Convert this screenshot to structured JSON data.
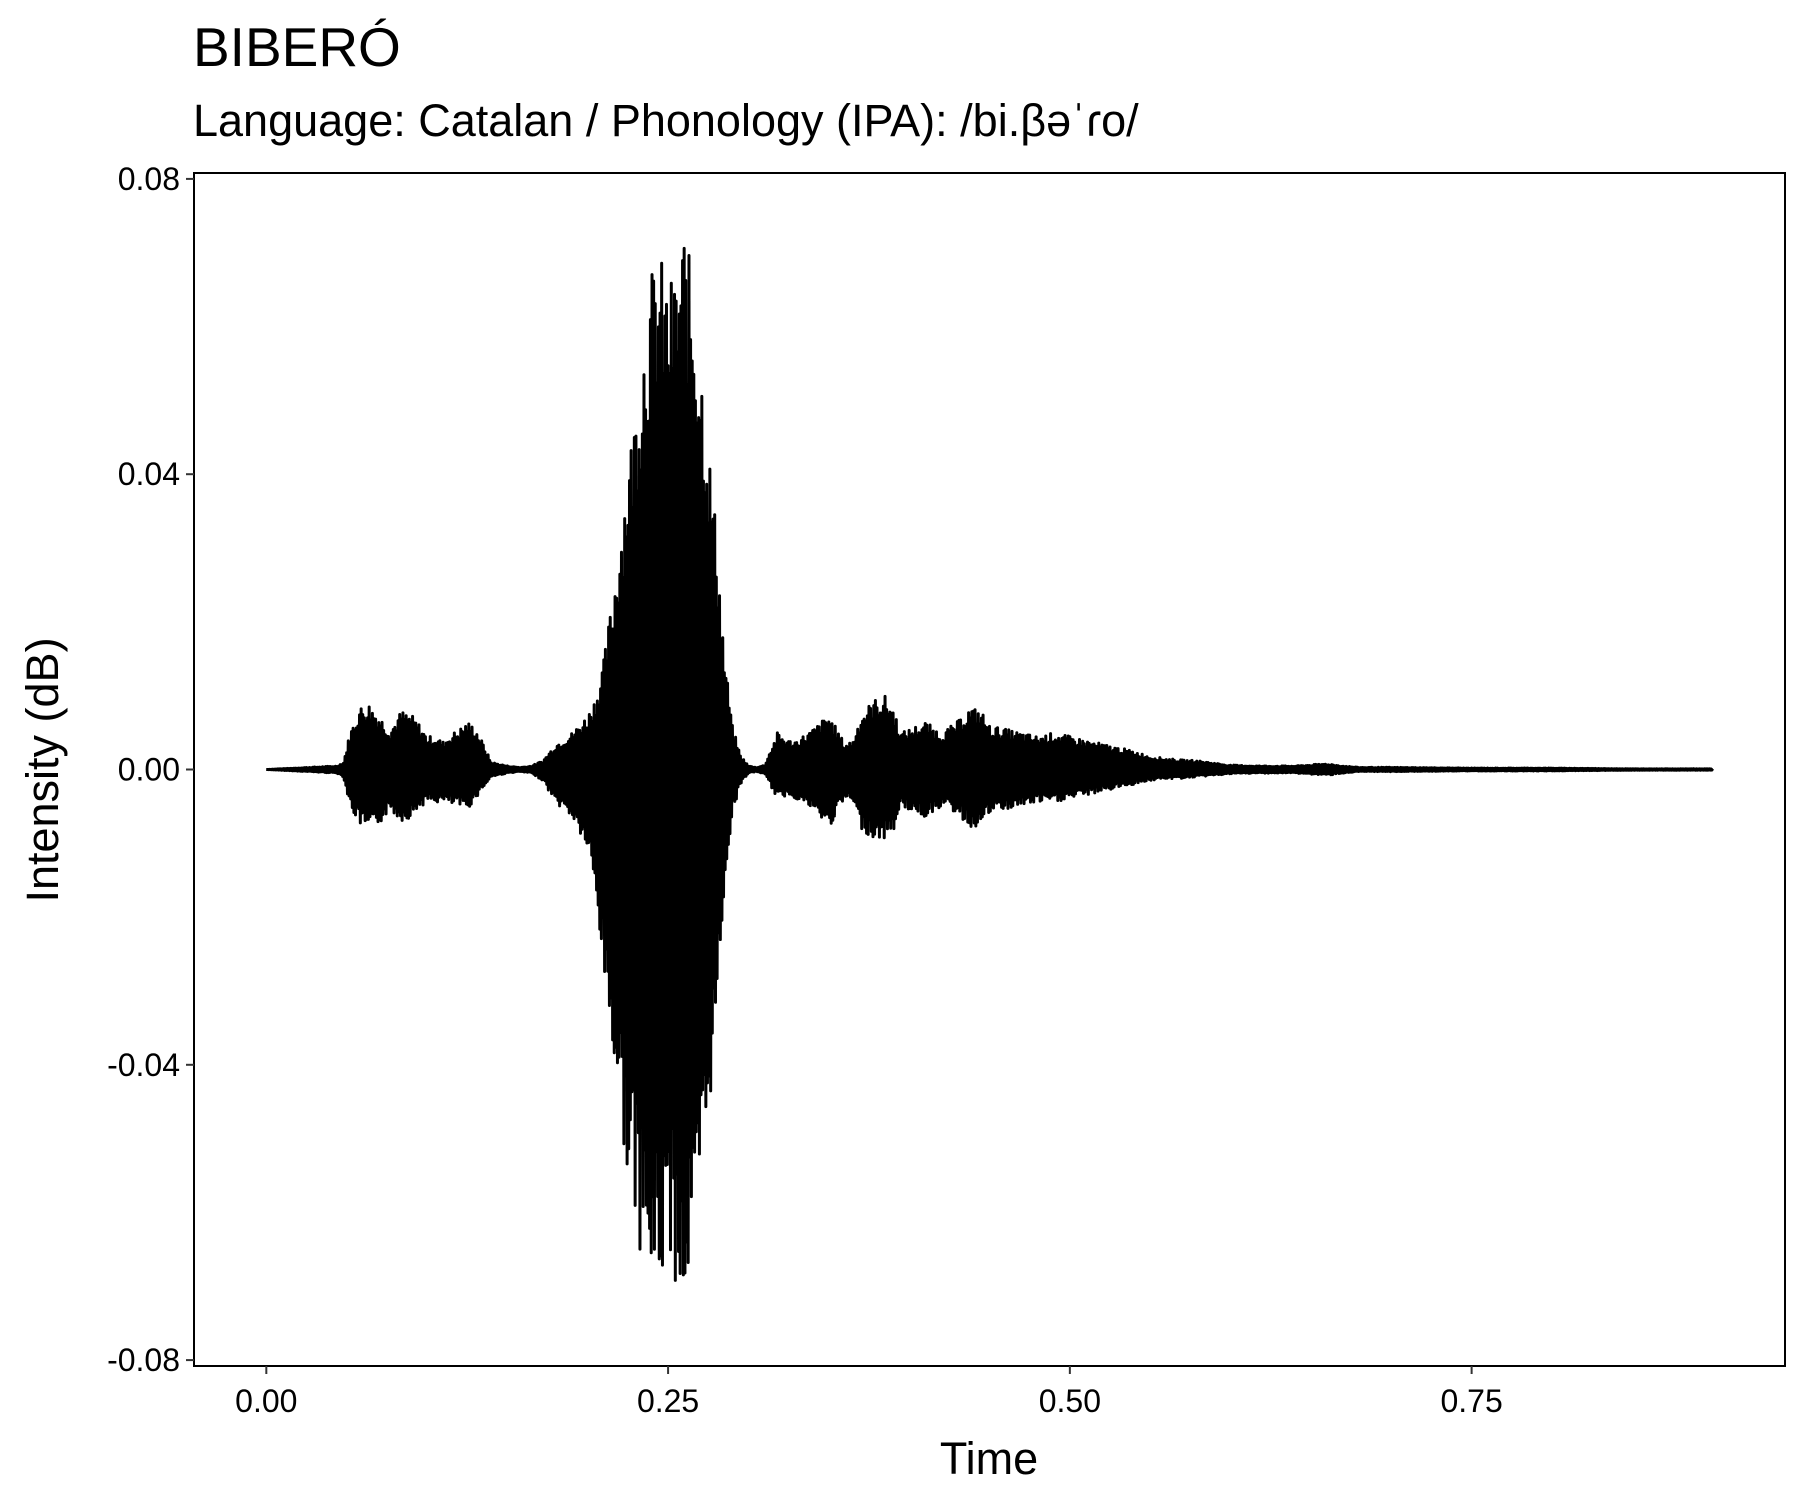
{
  "chart_data": {
    "type": "line",
    "title": "BIBERÓ",
    "subtitle": "Language: Catalan / Phonology (IPA): /bi.βəˈɾo/",
    "xlabel": "Time",
    "ylabel": "Intensity (dB)",
    "xlim": [
      -0.045,
      0.945
    ],
    "ylim": [
      -0.0808,
      0.0808
    ],
    "xticks": [
      0.0,
      0.25,
      0.5,
      0.75
    ],
    "xtick_labels": [
      "0.00",
      "0.25",
      "0.50",
      "0.75"
    ],
    "yticks": [
      -0.08,
      -0.04,
      0.0,
      0.04,
      0.08
    ],
    "ytick_labels": [
      "-0.08",
      "-0.04",
      "0.00",
      "0.04",
      "0.08"
    ],
    "grid": false,
    "line_color": "#000000",
    "envelope": {
      "t": [
        0.0,
        0.044,
        0.048,
        0.052,
        0.058,
        0.064,
        0.07,
        0.077,
        0.084,
        0.09,
        0.096,
        0.1,
        0.105,
        0.11,
        0.115,
        0.12,
        0.125,
        0.13,
        0.135,
        0.14,
        0.15,
        0.158,
        0.165,
        0.172,
        0.18,
        0.19,
        0.2,
        0.205,
        0.21,
        0.215,
        0.22,
        0.225,
        0.23,
        0.235,
        0.24,
        0.245,
        0.25,
        0.255,
        0.26,
        0.265,
        0.27,
        0.275,
        0.28,
        0.285,
        0.29,
        0.295,
        0.3,
        0.305,
        0.31,
        0.318,
        0.325,
        0.33,
        0.34,
        0.35,
        0.36,
        0.365,
        0.37,
        0.378,
        0.385,
        0.39,
        0.395,
        0.4,
        0.41,
        0.42,
        0.43,
        0.438,
        0.445,
        0.45,
        0.46,
        0.47,
        0.48,
        0.49,
        0.5,
        0.51,
        0.52,
        0.53,
        0.54,
        0.55,
        0.56,
        0.57,
        0.58,
        0.59,
        0.6,
        0.62,
        0.64,
        0.66,
        0.67,
        0.68,
        0.7,
        0.75,
        0.8,
        0.85,
        0.9
      ],
      "upper": [
        0.0,
        0.0005,
        0.001,
        0.005,
        0.0085,
        0.009,
        0.0075,
        0.0055,
        0.008,
        0.0075,
        0.006,
        0.0045,
        0.0045,
        0.0038,
        0.0048,
        0.0055,
        0.0065,
        0.0058,
        0.0035,
        0.001,
        0.0005,
        0.0003,
        0.0005,
        0.0012,
        0.0035,
        0.005,
        0.0075,
        0.01,
        0.015,
        0.023,
        0.032,
        0.042,
        0.05,
        0.06,
        0.068,
        0.07,
        0.066,
        0.068,
        0.074,
        0.067,
        0.058,
        0.045,
        0.033,
        0.016,
        0.006,
        0.002,
        0.0005,
        0.0003,
        0.0006,
        0.005,
        0.004,
        0.004,
        0.0055,
        0.0075,
        0.0035,
        0.004,
        0.0075,
        0.0095,
        0.01,
        0.0085,
        0.005,
        0.0055,
        0.0065,
        0.005,
        0.0065,
        0.0085,
        0.008,
        0.006,
        0.0055,
        0.005,
        0.0045,
        0.005,
        0.0045,
        0.004,
        0.0035,
        0.003,
        0.0025,
        0.0018,
        0.0015,
        0.0013,
        0.0012,
        0.0009,
        0.0006,
        0.0005,
        0.0005,
        0.0008,
        0.0005,
        0.0003,
        0.0003,
        0.0002,
        0.0002,
        0.0001,
        0.0001
      ],
      "lower": [
        0.0,
        -0.0005,
        -0.001,
        -0.005,
        -0.0075,
        -0.0085,
        -0.0075,
        -0.0055,
        -0.007,
        -0.0065,
        -0.005,
        -0.0045,
        -0.0045,
        -0.0045,
        -0.0048,
        -0.005,
        -0.0055,
        -0.004,
        -0.0025,
        -0.001,
        -0.0005,
        -0.0003,
        -0.0005,
        -0.0015,
        -0.0045,
        -0.0065,
        -0.011,
        -0.018,
        -0.028,
        -0.038,
        -0.047,
        -0.055,
        -0.062,
        -0.068,
        -0.072,
        -0.071,
        -0.065,
        -0.07,
        -0.074,
        -0.068,
        -0.06,
        -0.048,
        -0.035,
        -0.016,
        -0.006,
        -0.002,
        -0.0005,
        -0.0003,
        -0.0006,
        -0.004,
        -0.0035,
        -0.004,
        -0.0055,
        -0.008,
        -0.004,
        -0.0045,
        -0.008,
        -0.0095,
        -0.0095,
        -0.0085,
        -0.005,
        -0.0055,
        -0.0065,
        -0.005,
        -0.006,
        -0.008,
        -0.0075,
        -0.006,
        -0.0055,
        -0.005,
        -0.0045,
        -0.0045,
        -0.004,
        -0.0035,
        -0.003,
        -0.0025,
        -0.002,
        -0.0015,
        -0.0013,
        -0.0012,
        -0.001,
        -0.0008,
        -0.0006,
        -0.0005,
        -0.0005,
        -0.0008,
        -0.0005,
        -0.0003,
        -0.0003,
        -0.0002,
        -0.0002,
        -0.0001,
        -0.0001
      ]
    }
  }
}
